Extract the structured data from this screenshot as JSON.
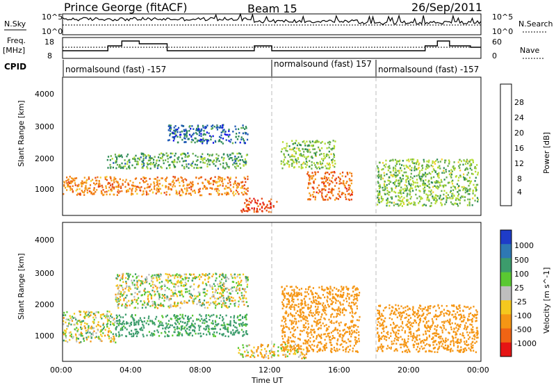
{
  "header": {
    "station": "Prince George (fitACF)",
    "beam": "Beam 15",
    "date": "26/Sep/2011"
  },
  "top_panels": {
    "nsky_label": "N.Sky",
    "nsky_ticks": [
      "10^5",
      "10^0"
    ],
    "nsearch_label": "N.Search",
    "freq_label": "Freq.",
    "freq_unit": "[MHz]",
    "freq_ticks": [
      "18",
      "8"
    ],
    "nave_ticks": [
      "60",
      "0"
    ],
    "nave_label": "Nave",
    "cpid_label": "CPID",
    "cpid_segments": [
      {
        "label": "normalsound (fast) -157",
        "start_h": 0,
        "end_h": 12
      },
      {
        "label": "normalsound (fast) 157",
        "start_h": 12,
        "end_h": 18
      },
      {
        "label": "normalsound (fast) -157",
        "start_h": 18,
        "end_h": 24
      }
    ]
  },
  "axes": {
    "xlabel": "Time UT",
    "xticks": [
      "00:00",
      "04:00",
      "08:00",
      "12:00",
      "16:00",
      "20:00",
      "00:00"
    ],
    "ylabel_power": "Slant Range [km]",
    "ylabel_velocity": "Slant Range [km]",
    "yticks": [
      "4000",
      "3000",
      "2000",
      "1000"
    ]
  },
  "colorbars": {
    "power": {
      "label": "Power [dB]",
      "ticks": [
        "28",
        "24",
        "20",
        "16",
        "12",
        "8",
        "4"
      ],
      "colors": [
        "#1414e6",
        "#1e5ab4",
        "#2e8b57",
        "#6ab04c",
        "#b4dc32",
        "#f5d232",
        "#f5a01e",
        "#f07814",
        "#e64614",
        "#e61414"
      ]
    },
    "velocity": {
      "label": "Velocity [m s^-1]",
      "ticks": [
        "1000",
        "500",
        "100",
        "25",
        "-25",
        "-100",
        "-500",
        "-1000"
      ],
      "colors": [
        "#1e3cc8",
        "#2e78b4",
        "#3c9c6c",
        "#5ac832",
        "#bebebe",
        "#f5c81e",
        "#f59614",
        "#f06414",
        "#e61414"
      ]
    }
  },
  "chart_data": [
    {
      "type": "heatmap",
      "title": "Power",
      "xlabel": "Time UT",
      "ylabel": "Slant Range [km]",
      "xlim_hours": [
        0,
        24
      ],
      "ylim_km": [
        180,
        4600
      ],
      "colorbar_label": "Power [dB]",
      "regions": [
        {
          "t": [
            0.0,
            10.6
          ],
          "range_km": [
            850,
            1450
          ],
          "value_db": 22
        },
        {
          "t": [
            2.5,
            10.6
          ],
          "range_km": [
            1700,
            2200
          ],
          "value_db": 10
        },
        {
          "t": [
            6.0,
            10.6
          ],
          "range_km": [
            2500,
            3100
          ],
          "value_db": 6
        },
        {
          "t": [
            10.2,
            12.3
          ],
          "range_km": [
            300,
            750
          ],
          "value_db": 26
        },
        {
          "t": [
            12.5,
            15.6
          ],
          "range_km": [
            1700,
            2600
          ],
          "value_db": 12
        },
        {
          "t": [
            14.0,
            16.6
          ],
          "range_km": [
            700,
            1600
          ],
          "value_db": 24
        },
        {
          "t": [
            18.0,
            23.8
          ],
          "range_km": [
            500,
            2000
          ],
          "value_db": 12
        }
      ]
    },
    {
      "type": "heatmap",
      "title": "Velocity",
      "xlabel": "Time UT",
      "ylabel": "Slant Range [km]",
      "xlim_hours": [
        0,
        24
      ],
      "ylim_km": [
        180,
        4600
      ],
      "colorbar_label": "Velocity [m s^-1]",
      "regions": [
        {
          "t": [
            0.0,
            3.0
          ],
          "range_km": [
            800,
            1800
          ],
          "value_ms": 0
        },
        {
          "t": [
            3.0,
            10.6
          ],
          "range_km": [
            1000,
            1700
          ],
          "value_ms": 200
        },
        {
          "t": [
            3.0,
            10.6
          ],
          "range_km": [
            1900,
            3000
          ],
          "value_ms": 0
        },
        {
          "t": [
            10.0,
            14.0
          ],
          "range_km": [
            300,
            750
          ],
          "value_ms": -60
        },
        {
          "t": [
            12.5,
            17.0
          ],
          "range_km": [
            500,
            2600
          ],
          "value_ms": -300
        },
        {
          "t": [
            18.0,
            23.8
          ],
          "range_km": [
            500,
            2000
          ],
          "value_ms": -300
        }
      ]
    }
  ]
}
